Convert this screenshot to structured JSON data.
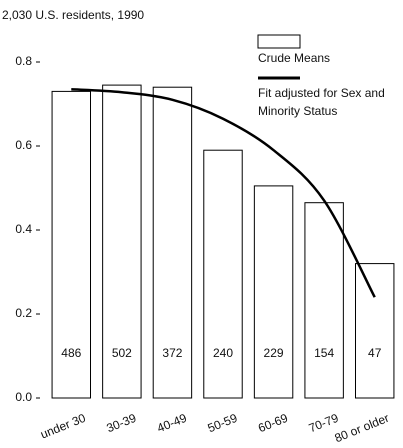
{
  "chart_data": {
    "type": "bar",
    "title": "2,030 U.S. residents, 1990",
    "categories": [
      "under 30",
      "30-39",
      "40-49",
      "50-59",
      "60-69",
      "70-79",
      "80 or older"
    ],
    "series": [
      {
        "name": "Crude Means",
        "color": "#ffffff",
        "values": [
          0.73,
          0.745,
          0.74,
          0.59,
          0.505,
          0.465,
          0.32
        ]
      },
      {
        "name": "Fit adjusted for Sex and Minority Status",
        "color": "#000000",
        "type": "line",
        "values": [
          0.735,
          0.728,
          0.71,
          0.665,
          0.59,
          0.47,
          0.24
        ]
      }
    ],
    "counts": [
      486,
      502,
      372,
      240,
      229,
      154,
      47
    ],
    "ylim": [
      0,
      0.8
    ],
    "yticks": [
      {
        "value": 0,
        "label": "0.0"
      },
      0.2,
      0.4,
      0.6,
      0.8
    ],
    "grid": false,
    "legend": "top-right"
  }
}
